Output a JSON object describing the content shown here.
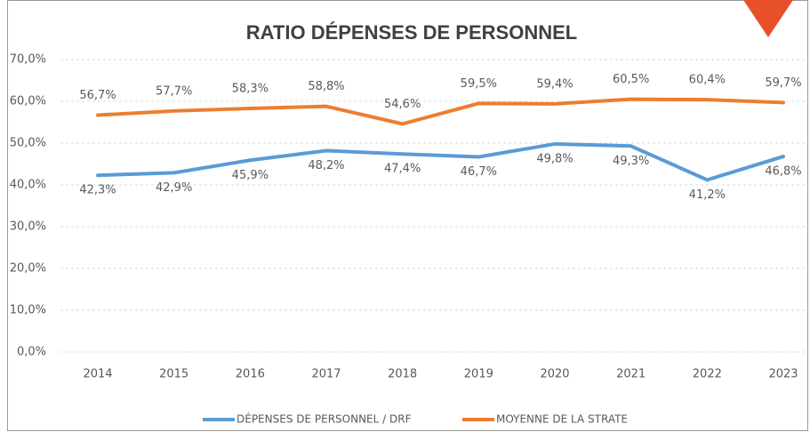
{
  "chart_data": {
    "type": "line",
    "title": "RATIO DÉPENSES DE PERSONNEL",
    "categories": [
      "2014",
      "2015",
      "2016",
      "2017",
      "2018",
      "2019",
      "2020",
      "2021",
      "2022",
      "2023"
    ],
    "series": [
      {
        "name": "DÉPENSES DE PERSONNEL / DRF",
        "color": "#5b9bd5",
        "values": [
          42.3,
          42.9,
          45.9,
          48.2,
          47.4,
          46.7,
          49.8,
          49.3,
          41.2,
          46.8
        ],
        "value_labels": [
          "42,3%",
          "42,9%",
          "45,9%",
          "48,2%",
          "47,4%",
          "46,7%",
          "49,8%",
          "49,3%",
          "41,2%",
          "46,8%"
        ]
      },
      {
        "name": "MOYENNE DE LA STRATE",
        "color": "#ed7d31",
        "values": [
          56.7,
          57.7,
          58.3,
          58.8,
          54.6,
          59.5,
          59.4,
          60.5,
          60.4,
          59.7
        ],
        "value_labels": [
          "56,7%",
          "57,7%",
          "58,3%",
          "58,8%",
          "54,6%",
          "59,5%",
          "59,4%",
          "60,5%",
          "60,4%",
          "59,7%"
        ]
      }
    ],
    "ylim": [
      0,
      70
    ],
    "yticks": [
      {
        "value": 0,
        "label": "0,0%"
      },
      {
        "value": 10,
        "label": "10,0%"
      },
      {
        "value": 20,
        "label": "20,0%"
      },
      {
        "value": 30,
        "label": "30,0%"
      },
      {
        "value": 40,
        "label": "40,0%"
      },
      {
        "value": 50,
        "label": "50,0%"
      },
      {
        "value": 60,
        "label": "60,0%"
      },
      {
        "value": 70,
        "label": "70,0%"
      }
    ],
    "grid": true
  }
}
